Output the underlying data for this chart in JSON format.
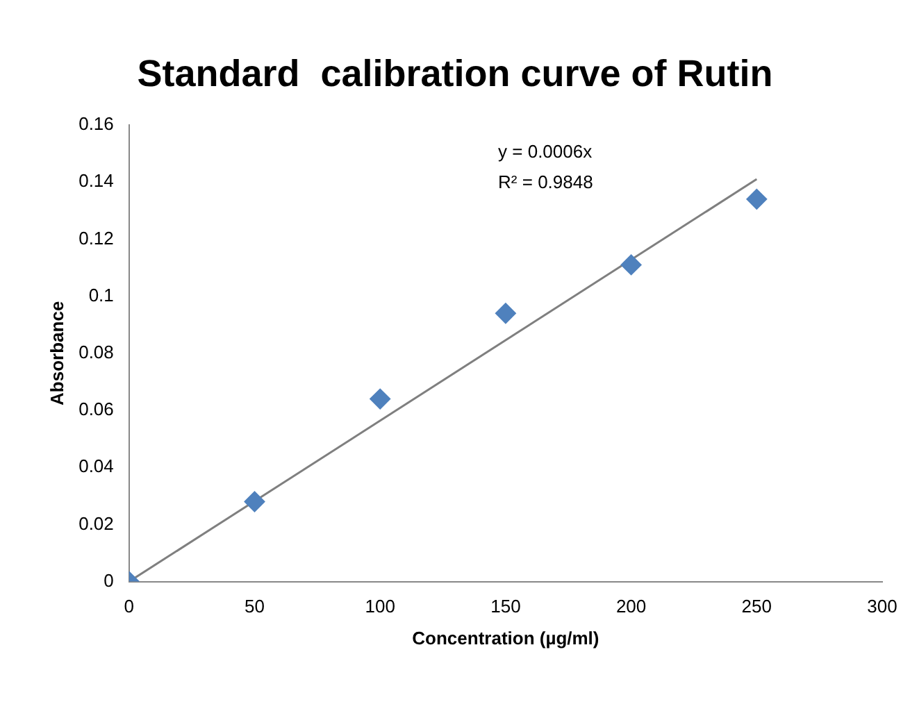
{
  "chart_data": {
    "type": "scatter",
    "title": "Standard  calibration curve of Rutin",
    "xlabel": "Concentration (µg/ml)",
    "ylabel": "Absorbance",
    "x": [
      0,
      50,
      100,
      150,
      200,
      250
    ],
    "series": [
      {
        "color": "#4f81bd",
        "values": [
          0,
          0.028,
          0.064,
          0.094,
          0.111,
          0.134
        ],
        "marker": "diamond"
      },
      {
        "type": "line",
        "color": "#7f7f7f",
        "x": [
          0,
          250
        ],
        "values": [
          0,
          0.141
        ],
        "marker": "none",
        "line_style": "solid"
      }
    ],
    "xlim": [
      0,
      300
    ],
    "xticks": [
      0,
      50,
      100,
      150,
      200,
      250,
      300
    ],
    "ylim": [
      0,
      0.16
    ],
    "yticks": [
      0,
      0.02,
      0.04,
      0.06,
      0.08,
      0.1,
      0.12,
      0.14,
      0.16
    ],
    "annotations": [
      "y = 0.0006x",
      "R² = 0.9848"
    ],
    "grid": false,
    "legend": false
  }
}
